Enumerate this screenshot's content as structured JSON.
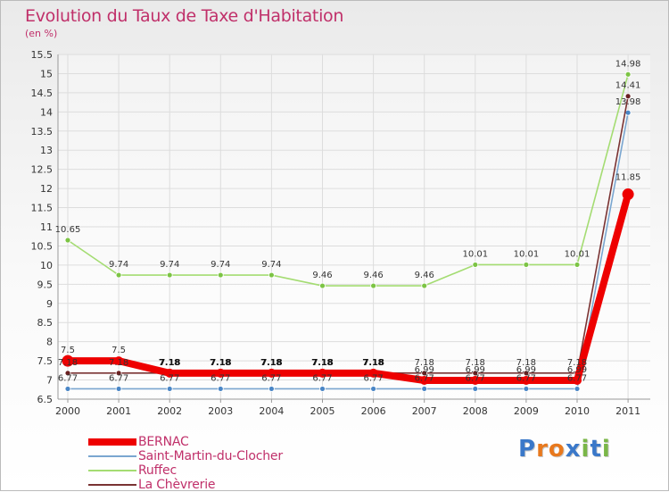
{
  "title": "Evolution du Taux de Taxe d'Habitation",
  "subtitle": "(en %)",
  "logo": {
    "text": "Proxiti",
    "letters": [
      "P",
      "r",
      "o",
      "x",
      "i",
      "t",
      "i"
    ],
    "colors": [
      "#3a78c9",
      "#e8791e",
      "#e8791e",
      "#3a78c9",
      "#7ab648",
      "#3a78c9",
      "#7ab648"
    ]
  },
  "legend": [
    {
      "name": "BERNAC",
      "color": "#ee0000"
    },
    {
      "name": "Saint-Martin-du-Clocher",
      "color": "#7aa6d0"
    },
    {
      "name": "Ruffec",
      "color": "#a4dc72"
    },
    {
      "name": "La Chèvrerie",
      "color": "#7a3333"
    }
  ],
  "chart_data": {
    "type": "line",
    "title": "Evolution du Taux de Taxe d'Habitation",
    "ylabel": "(en %)",
    "xlabel": "",
    "categories": [
      "2000",
      "2001",
      "2002",
      "2003",
      "2004",
      "2005",
      "2006",
      "2007",
      "2008",
      "2009",
      "2010",
      "2011"
    ],
    "ylim": [
      6.5,
      15.5
    ],
    "yticks": [
      "6.5",
      "7",
      "7.5",
      "8",
      "8.5",
      "9",
      "9.5",
      "10",
      "10.5",
      "11",
      "11.5",
      "12",
      "12.5",
      "13",
      "13.5",
      "14",
      "14.5",
      "15",
      "15.5"
    ],
    "grid": true,
    "series": [
      {
        "name": "Ruffec",
        "color": "#a4dc72",
        "marker_color": "#7cc444",
        "values": [
          10.65,
          9.74,
          9.74,
          9.74,
          9.74,
          9.46,
          9.46,
          9.46,
          10.01,
          10.01,
          10.01,
          14.98
        ],
        "labels": [
          "10.65",
          "9.74",
          "9.74",
          "9.74",
          "9.74",
          "9.46",
          "9.46",
          "9.46",
          "10.01",
          "10.01",
          "10.01",
          "14.98"
        ]
      },
      {
        "name": "Saint-Martin-du-Clocher",
        "color": "#7aa6d0",
        "marker_color": "#4a86c6",
        "values": [
          6.77,
          6.77,
          6.77,
          6.77,
          6.77,
          6.77,
          6.77,
          6.77,
          6.77,
          6.77,
          6.77,
          13.98
        ],
        "labels": [
          "6.77",
          "6.77",
          "6.77",
          "6.77",
          "6.77",
          "6.77",
          "6.77",
          "6.77",
          "6.77",
          "6.77",
          "6.77",
          "13.98"
        ]
      },
      {
        "name": "La Chèvrerie",
        "color": "#7a3333",
        "marker_color": "#6a2020",
        "values": [
          7.18,
          7.18,
          7.18,
          7.18,
          7.18,
          7.18,
          7.18,
          7.18,
          7.18,
          7.18,
          7.18,
          14.41
        ],
        "labels": [
          "7.18",
          "7.18",
          "7.18",
          "7.18",
          "7.18",
          "7.18",
          "7.18",
          "7.18",
          "7.18",
          "7.18",
          "7.18",
          "14.41"
        ]
      },
      {
        "name": "BERNAC",
        "color": "#ee0000",
        "marker_color": "#ee0000",
        "values": [
          7.5,
          7.5,
          7.18,
          7.18,
          7.18,
          7.18,
          7.18,
          6.99,
          6.99,
          6.99,
          6.99,
          11.85
        ],
        "labels": [
          "7.5",
          "7.5",
          "7.18",
          "7.18",
          "7.18",
          "7.18",
          "7.18",
          "6.99",
          "6.99",
          "6.99",
          "6.99",
          "11.85"
        ]
      }
    ]
  }
}
